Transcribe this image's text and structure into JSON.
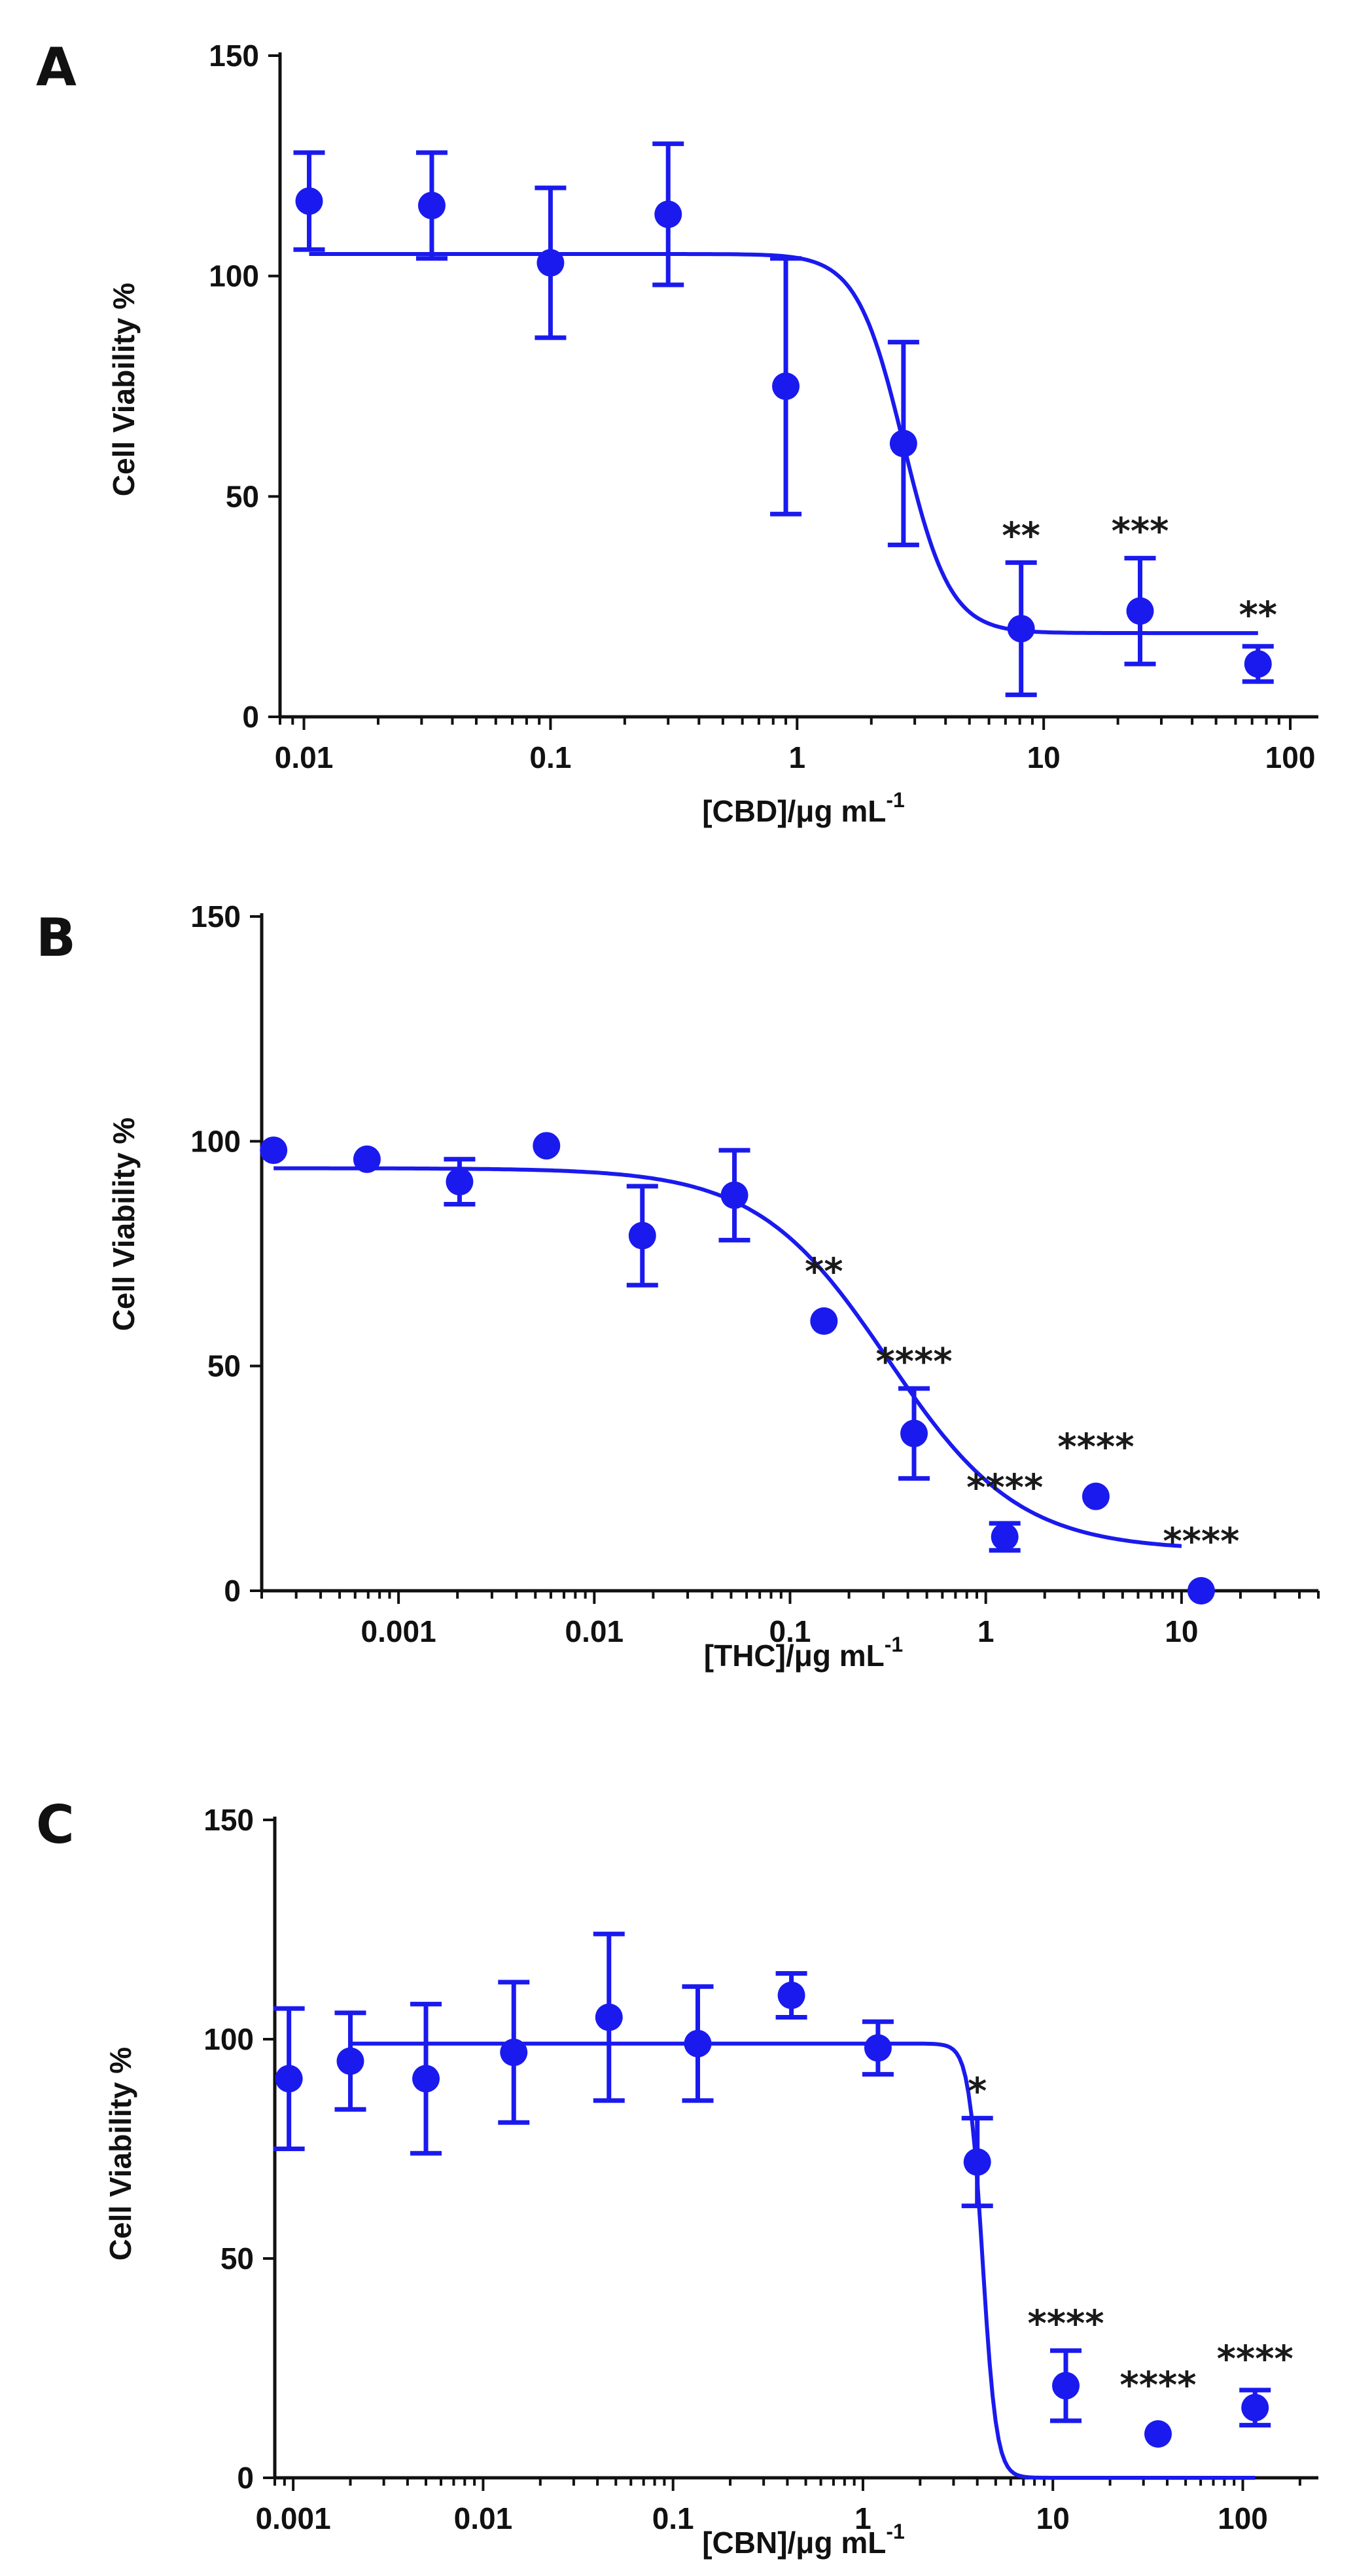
{
  "colors": {
    "series": "#1a1aee",
    "axis": "#111111"
  },
  "chart_data": [
    {
      "panel": "A",
      "type": "scatter",
      "ylabel": "Cell Viability %",
      "xlabel_main": "[CBD]/μg mL",
      "xlabel_sup": "-1",
      "xscale": "log",
      "xlim": [
        0.008,
        130
      ],
      "ylim": [
        0,
        150
      ],
      "yticks": [
        0,
        50,
        100,
        150
      ],
      "xticks": [
        {
          "v": 0.01,
          "label": "0.01"
        },
        {
          "v": 0.1,
          "label": "0.1"
        },
        {
          "v": 1,
          "label": "1"
        },
        {
          "v": 10,
          "label": "10"
        },
        {
          "v": 100,
          "label": "100"
        }
      ],
      "points": [
        {
          "x": 0.0105,
          "y": 117,
          "err": 11
        },
        {
          "x": 0.033,
          "y": 116,
          "err": 12
        },
        {
          "x": 0.1,
          "y": 103,
          "err": 17
        },
        {
          "x": 0.3,
          "y": 114,
          "err": 16
        },
        {
          "x": 0.9,
          "y": 75,
          "err": 29
        },
        {
          "x": 2.7,
          "y": 62,
          "err": 23
        },
        {
          "x": 8.1,
          "y": 20,
          "err": 15
        },
        {
          "x": 24.6,
          "y": 24,
          "err": 12
        },
        {
          "x": 74,
          "y": 12,
          "err": 4
        }
      ],
      "significance": [
        {
          "x": 8.1,
          "label": "**"
        },
        {
          "x": 24.6,
          "label": "***"
        },
        {
          "x": 74,
          "label": "**"
        }
      ],
      "fit": {
        "top": 105,
        "bottom": 19,
        "log_ec50": 0.4314,
        "hill": 4.6,
        "xmin": 0.0105,
        "xmax": 74
      }
    },
    {
      "panel": "B",
      "type": "scatter",
      "ylabel": "Cell Viability %",
      "xlabel_main": "[THC]/μg mL",
      "xlabel_sup": "-1",
      "xscale": "log",
      "xlim": [
        0.0002,
        50
      ],
      "ylim": [
        0,
        150
      ],
      "yticks": [
        0,
        50,
        100,
        150
      ],
      "xticks": [
        {
          "v": 0.001,
          "label": "0.001"
        },
        {
          "v": 0.01,
          "label": "0.01"
        },
        {
          "v": 0.1,
          "label": "0.1"
        },
        {
          "v": 1,
          "label": "1"
        },
        {
          "v": 10,
          "label": "10"
        }
      ],
      "points": [
        {
          "x": 0.00023,
          "y": 98,
          "err": 0
        },
        {
          "x": 0.00069,
          "y": 96,
          "err": 0
        },
        {
          "x": 0.00205,
          "y": 91,
          "err": 5
        },
        {
          "x": 0.0057,
          "y": 99,
          "err": 0
        },
        {
          "x": 0.0176,
          "y": 79,
          "err": 11
        },
        {
          "x": 0.052,
          "y": 88,
          "err": 10
        },
        {
          "x": 0.149,
          "y": 60,
          "err": 0
        },
        {
          "x": 0.43,
          "y": 35,
          "err": 10
        },
        {
          "x": 1.25,
          "y": 12,
          "err": 3
        },
        {
          "x": 3.65,
          "y": 21,
          "err": 0
        },
        {
          "x": 12.6,
          "y": 0,
          "err": 0
        }
      ],
      "significance": [
        {
          "x": 0.149,
          "label": "**"
        },
        {
          "x": 0.43,
          "label": "****"
        },
        {
          "x": 1.25,
          "label": "****"
        },
        {
          "x": 3.65,
          "label": "****"
        },
        {
          "x": 12.6,
          "label": "****"
        }
      ],
      "fit": {
        "top": 94,
        "bottom": 9,
        "log_ec50": -0.5,
        "hill": 1.3,
        "xmin": 0.00023,
        "xmax": 10
      }
    },
    {
      "panel": "C",
      "type": "scatter",
      "ylabel": "Cell Viability %",
      "xlabel_main": "[CBN]/μg mL",
      "xlabel_sup": "-1",
      "xscale": "log",
      "xlim": [
        0.0008,
        250
      ],
      "ylim": [
        0,
        150
      ],
      "yticks": [
        0,
        50,
        100,
        150
      ],
      "xticks": [
        {
          "v": 0.001,
          "label": "0.001"
        },
        {
          "v": 0.01,
          "label": "0.01"
        },
        {
          "v": 0.1,
          "label": "0.1"
        },
        {
          "v": 1,
          "label": "1"
        },
        {
          "v": 10,
          "label": "10"
        },
        {
          "v": 100,
          "label": "100"
        }
      ],
      "points": [
        {
          "x": 0.00095,
          "y": 91,
          "err": 16
        },
        {
          "x": 0.002,
          "y": 95,
          "err": 11
        },
        {
          "x": 0.005,
          "y": 91,
          "err": 17
        },
        {
          "x": 0.0145,
          "y": 97,
          "err": 16
        },
        {
          "x": 0.046,
          "y": 105,
          "err": 19
        },
        {
          "x": 0.135,
          "y": 99,
          "err": 13
        },
        {
          "x": 0.42,
          "y": 110,
          "err": 5
        },
        {
          "x": 1.2,
          "y": 98,
          "err": 6
        },
        {
          "x": 4.0,
          "y": 72,
          "err": 10
        },
        {
          "x": 11.7,
          "y": 21,
          "err": 8
        },
        {
          "x": 35.8,
          "y": 10,
          "err": 0
        },
        {
          "x": 116,
          "y": 16,
          "err": 4
        }
      ],
      "significance": [
        {
          "x": 4.0,
          "label": "*"
        },
        {
          "x": 11.7,
          "label": "****"
        },
        {
          "x": 35.8,
          "label": "****"
        },
        {
          "x": 116,
          "label": "****"
        }
      ],
      "fit": {
        "top": 99,
        "bottom": 0,
        "log_ec50": 0.63,
        "hill": 12,
        "xmin": 0.002,
        "xmax": 116
      }
    }
  ]
}
